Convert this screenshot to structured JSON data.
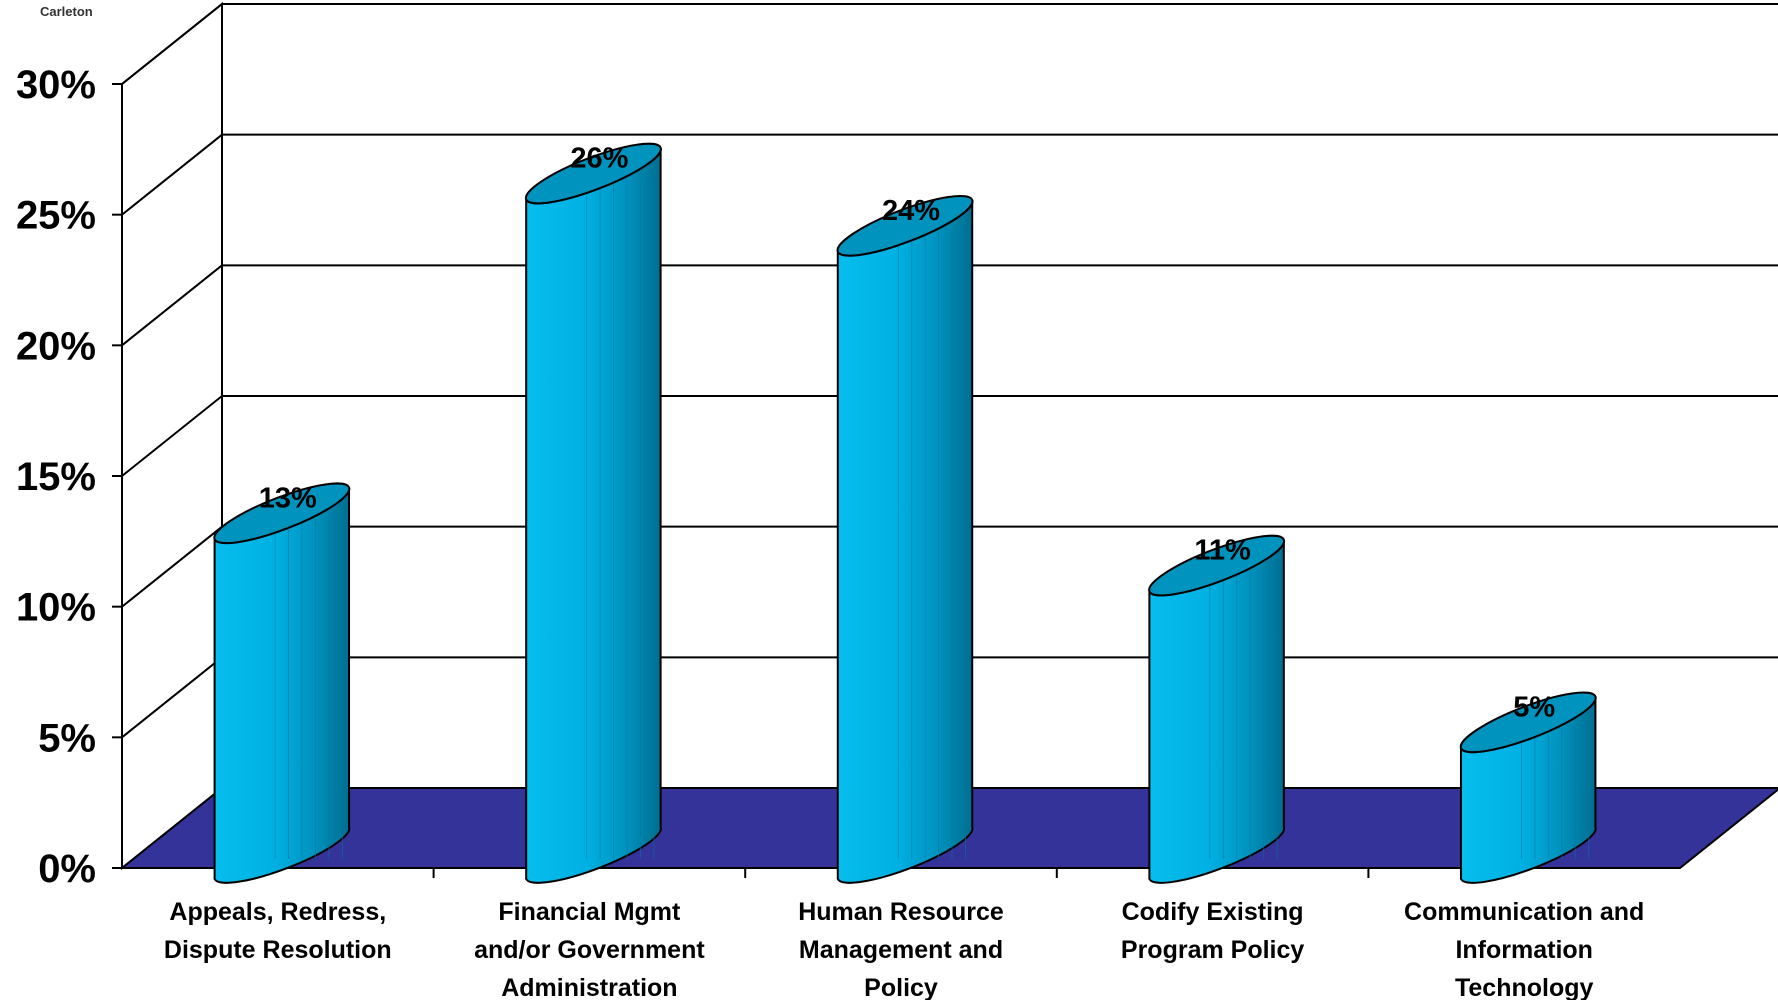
{
  "brand": "Carleton",
  "chart_data": {
    "type": "bar",
    "title": "",
    "xlabel": "",
    "ylabel": "",
    "ylim": [
      0,
      30
    ],
    "yticks": [
      "0%",
      "5%",
      "10%",
      "15%",
      "20%",
      "25%",
      "30%"
    ],
    "categories": [
      [
        "Appeals, Redress,",
        "Dispute Resolution"
      ],
      [
        "Financial Mgmt",
        "and/or Government",
        "Administration"
      ],
      [
        "Human Resource",
        "Management and",
        "Policy"
      ],
      [
        "Codify Existing",
        "Program Policy"
      ],
      [
        "Communication and",
        "Information",
        "Technology"
      ]
    ],
    "values": [
      13,
      26,
      24,
      11,
      5
    ],
    "data_labels": [
      "13%",
      "26%",
      "24%",
      "11%",
      "5%"
    ],
    "grid": true,
    "legend": "none",
    "colors": {
      "bar_front": "#00B4E6",
      "bar_shade": "#00789E",
      "bar_top": "#0093BE",
      "floor": "#333399",
      "grid": "#000000"
    }
  }
}
